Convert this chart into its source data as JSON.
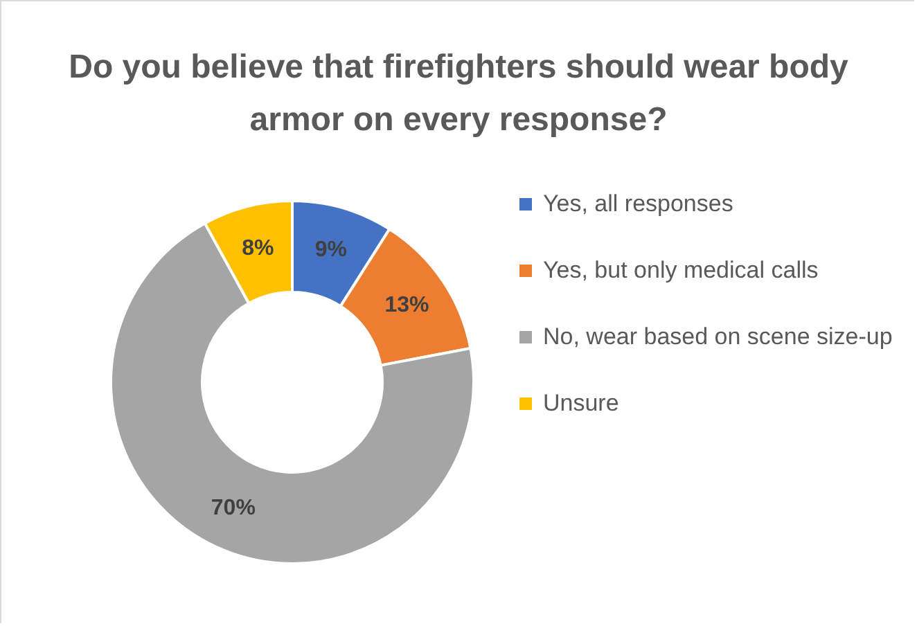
{
  "chart_data": {
    "type": "donut",
    "title": "Do you believe that firefighters should wear body armor on every response?",
    "categories": [
      "Yes, all responses",
      "Yes, but only medical calls",
      "No, wear based on scene size-up",
      "Unsure"
    ],
    "values": [
      9,
      13,
      70,
      8
    ],
    "colors": [
      "#4472c4",
      "#ed7d31",
      "#a5a5a5",
      "#ffc000"
    ],
    "value_labels": [
      "9%",
      "13%",
      "70%",
      "8%"
    ],
    "legend": "right"
  }
}
